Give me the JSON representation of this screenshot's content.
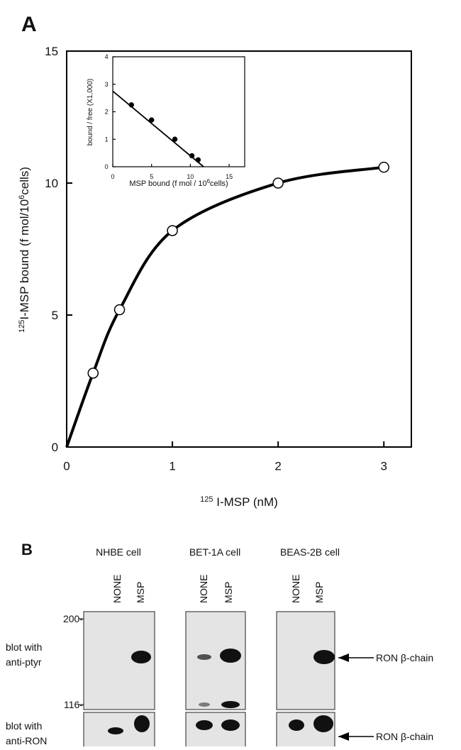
{
  "panel_a_label": "A",
  "chart_data": [
    {
      "type": "line",
      "x_label": {
        "sup": "125",
        "text": " I-MSP (nM)"
      },
      "y_label": {
        "sup": "125",
        "text": "I-MSP bound (f mol/10",
        "sup2": "6",
        "text2": "cells)"
      },
      "x": [
        0.25,
        0.5,
        1,
        2,
        3
      ],
      "values": [
        2.8,
        5.2,
        8.2,
        10,
        10.6
      ],
      "curve": {
        "x": [
          0,
          0.25,
          0.5,
          1,
          2,
          3
        ],
        "values": [
          0,
          2.8,
          5.2,
          8.2,
          10,
          10.6
        ]
      },
      "marker": "open",
      "color": "#000000",
      "xlim": [
        0,
        3.26
      ],
      "ylim": [
        0,
        15
      ],
      "xticks": [
        0,
        1,
        2,
        3
      ],
      "yticks": [
        0,
        5,
        10,
        15
      ]
    },
    {
      "type": "scatter",
      "x_label": {
        "text": "MSP bound (f mol / 10",
        "sup": "6",
        "text2": "cells)"
      },
      "y_label": {
        "text": "bound / free (X1,000)"
      },
      "x": [
        2.4,
        5,
        8,
        10.2,
        11
      ],
      "values": [
        2.25,
        1.7,
        1.0,
        0.4,
        0.25
      ],
      "curve": {
        "x": [
          0,
          11.7
        ],
        "values": [
          2.75,
          0
        ]
      },
      "marker": "filled",
      "color": "#000000",
      "xlim": [
        0,
        17
      ],
      "ylim": [
        0,
        4
      ],
      "xticks": [
        0,
        5,
        10,
        15
      ],
      "yticks": [
        0,
        1,
        2,
        3,
        4
      ]
    }
  ],
  "panel_b": {
    "label": "B",
    "cells": [
      "NHBE cell",
      "BET-1A cell",
      "BEAS-2B cell"
    ],
    "lanes": [
      "NONE",
      "MSP"
    ],
    "markers": [
      "200-",
      "116-"
    ],
    "rows": [
      {
        "label": [
          "blot with",
          "anti-ptyr"
        ],
        "arrow": "RON β-chain"
      },
      {
        "label": [
          "blot with",
          "anti-RON"
        ],
        "arrow": "RON β-chain"
      }
    ]
  }
}
